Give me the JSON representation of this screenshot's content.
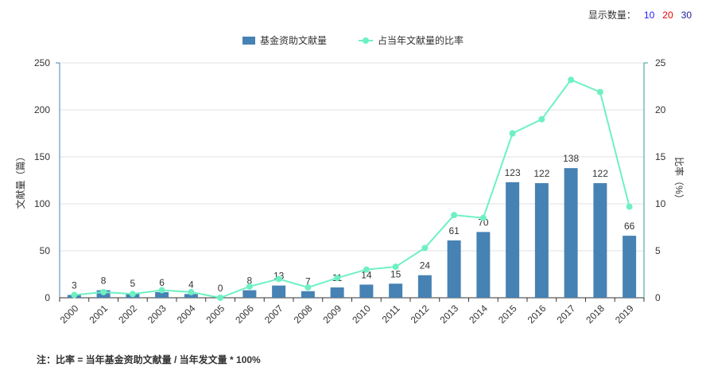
{
  "display_count": {
    "label": "显示数量：",
    "options": [
      {
        "label": "10",
        "color": "#1a1aff"
      },
      {
        "label": "20",
        "color": "#e60000"
      },
      {
        "label": "30",
        "color": "#1a1a99"
      }
    ]
  },
  "colors": {
    "bar": "#4682b4",
    "line": "#6ef1c2",
    "axis_left": "#4682b4",
    "axis_right": "#2aa198",
    "grid": "#e0e0e0"
  },
  "note": "注：比率 = 当年基金资助文献量 / 当年发文量 * 100%",
  "chart_data": {
    "type": "bar",
    "categories": [
      "2000",
      "2001",
      "2002",
      "2003",
      "2004",
      "2005",
      "2006",
      "2007",
      "2008",
      "2009",
      "2010",
      "2011",
      "2012",
      "2013",
      "2014",
      "2015",
      "2016",
      "2017",
      "2018",
      "2019"
    ],
    "series": [
      {
        "name": "基金资助文献量",
        "type": "bar",
        "axis": "left",
        "values": [
          3,
          8,
          5,
          6,
          4,
          0,
          8,
          13,
          7,
          11,
          14,
          15,
          24,
          61,
          70,
          123,
          122,
          138,
          122,
          66
        ]
      },
      {
        "name": "占当年文献量的比率",
        "type": "line",
        "axis": "right",
        "values": [
          0.3,
          0.6,
          0.4,
          0.8,
          0.6,
          0.0,
          1.2,
          2.0,
          1.1,
          2.1,
          3.0,
          3.3,
          5.3,
          8.8,
          8.5,
          17.5,
          19.0,
          23.2,
          21.9,
          9.7
        ]
      }
    ],
    "ylabel": "文献量（篇）",
    "y2label": "比率（%）",
    "ylim": [
      0,
      250
    ],
    "y2lim": [
      0,
      25
    ],
    "yticks": [
      0,
      50,
      100,
      150,
      200,
      250
    ],
    "y2ticks": [
      0,
      5,
      10,
      15,
      20,
      25
    ],
    "grid": true,
    "legend_position": "top-center"
  }
}
